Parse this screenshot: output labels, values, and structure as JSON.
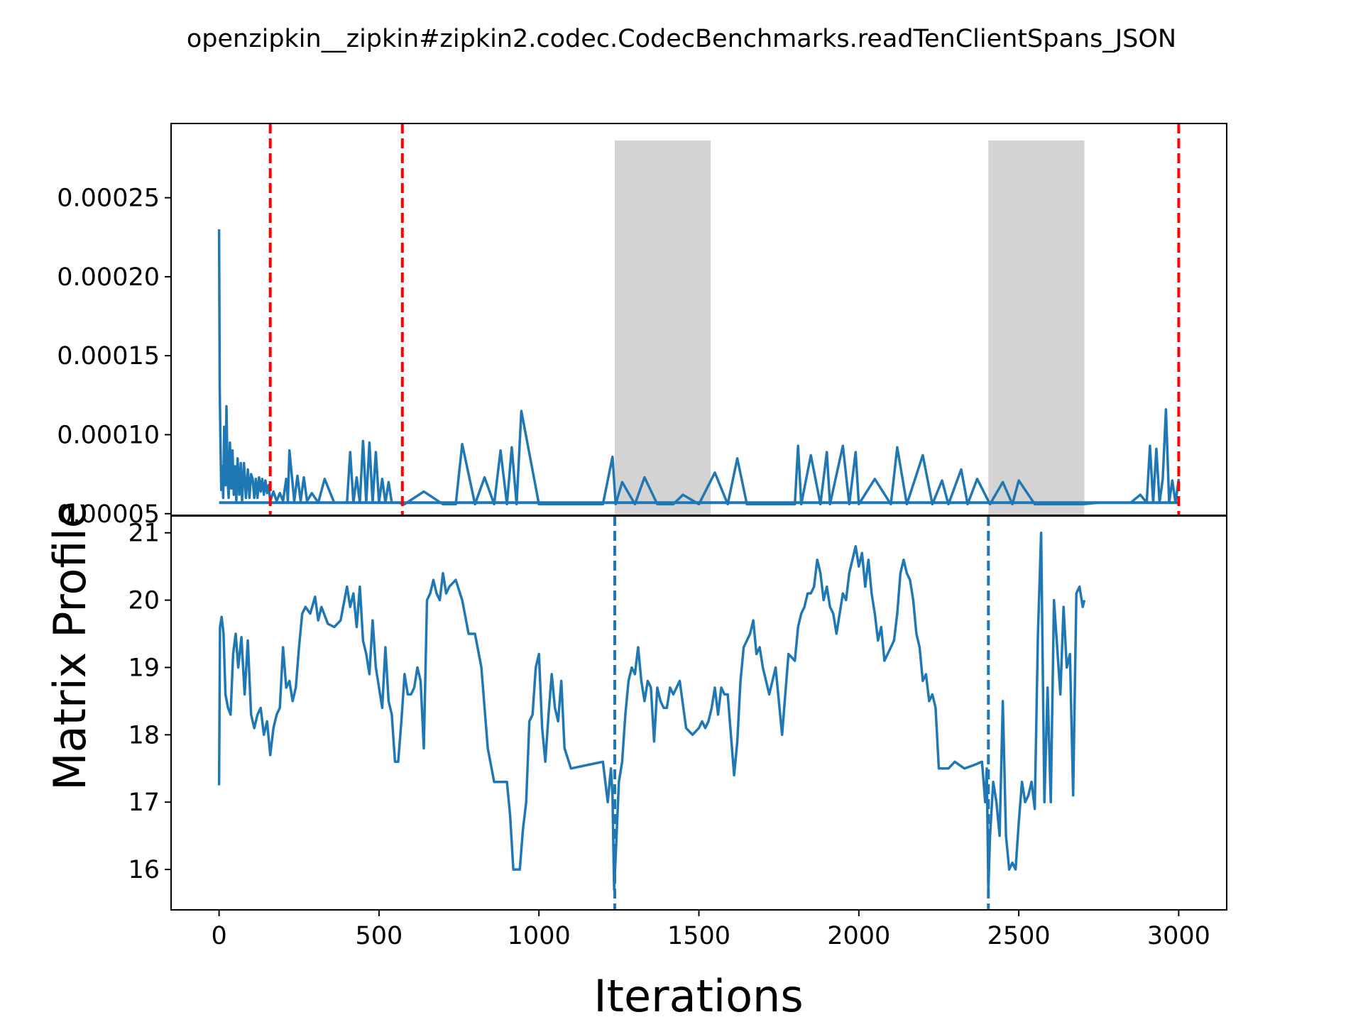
{
  "figure": {
    "title": "openzipkin__zipkin#zipkin2.codec.CodecBenchmarks.readTenClientSpans_JSON",
    "xlabel": "Iterations",
    "ylabel": "Matrix Profile"
  },
  "colors": {
    "series": "#1f77b4",
    "changepoint": "#ff0000",
    "shaded": "#d3d3d3",
    "axes": "#000000"
  },
  "chart_data": [
    {
      "type": "line",
      "panel": "top",
      "xlim": [
        -150,
        3150
      ],
      "ylim": [
        4.9e-05,
        0.000297
      ],
      "x_ticks": [
        0,
        500,
        1000,
        1500,
        2000,
        2500,
        3000
      ],
      "x_tick_labels": [
        "0",
        "500",
        "1000",
        "1500",
        "2000",
        "2500",
        "3000"
      ],
      "y_ticks": [
        5e-05,
        0.0001,
        0.00015,
        0.0002,
        0.00025
      ],
      "y_tick_labels": [
        "0.00005",
        "0.00010",
        "0.00015",
        "0.00020",
        "0.00025"
      ],
      "baseline": 5.7e-05,
      "series": [
        {
          "x": [
            0,
            2,
            4,
            7,
            10,
            13,
            16,
            20,
            23,
            27,
            30,
            34,
            38,
            42,
            46,
            50,
            54,
            58,
            63,
            68,
            72,
            78,
            84,
            90,
            95,
            100,
            105,
            110,
            115,
            120,
            125,
            130,
            135,
            140,
            145,
            150,
            155,
            160,
            170,
            180,
            190,
            200,
            210,
            215,
            220,
            235,
            245,
            255,
            265,
            275,
            290,
            310,
            330,
            360,
            400,
            410,
            420,
            430,
            440,
            450,
            460,
            470,
            480,
            490,
            500,
            510,
            520,
            530,
            540,
            560,
            580,
            640,
            700,
            740,
            760,
            800,
            830,
            860,
            880,
            900,
            915,
            930,
            945,
            1000,
            1100,
            1200,
            1230,
            1240,
            1260,
            1300,
            1330,
            1370,
            1420,
            1450,
            1500,
            1550,
            1590,
            1620,
            1650,
            1700,
            1800,
            1810,
            1820,
            1850,
            1880,
            1900,
            1910,
            1950,
            1970,
            1990,
            2000,
            2050,
            2100,
            2120,
            2150,
            2200,
            2230,
            2260,
            2280,
            2320,
            2340,
            2370,
            2410,
            2450,
            2480,
            2500,
            2550,
            2600,
            2650,
            2700,
            2750,
            2800,
            2850,
            2880,
            2900,
            2910,
            2920,
            2930,
            2940,
            2950,
            2960,
            2970,
            2980,
            2990,
            3000
          ],
          "values": [
            0.00023,
            0.00013,
            0.0001,
            6.5e-05,
            8e-05,
            6e-05,
            0.000105,
            6.8e-05,
            0.000118,
            7e-05,
            6e-05,
            9.5e-05,
            6.6e-05,
            9e-05,
            6.2e-05,
            8e-05,
            5.8e-05,
            8.5e-05,
            6.2e-05,
            8.2e-05,
            5.8e-05,
            8.2e-05,
            6e-05,
            7.8e-05,
            6e-05,
            7.5e-05,
            7.2e-05,
            6e-05,
            7.2e-05,
            6e-05,
            7.3e-05,
            6.4e-05,
            7.2e-05,
            6.2e-05,
            7.1e-05,
            6.3e-05,
            6.8e-05,
            5.8e-05,
            6.4e-05,
            5.8e-05,
            6.3e-05,
            5.8e-05,
            7.2e-05,
            5.8e-05,
            9e-05,
            5.8e-05,
            7.4e-05,
            5.8e-05,
            7.3e-05,
            5.8e-05,
            6.3e-05,
            5.7e-05,
            7.2e-05,
            5.7e-05,
            5.7e-05,
            8.9e-05,
            5.7e-05,
            7.3e-05,
            5.7e-05,
            9.6e-05,
            5.7e-05,
            9.5e-05,
            5.7e-05,
            8.9e-05,
            5.7e-05,
            7.2e-05,
            5.7e-05,
            7e-05,
            5.7e-05,
            5.7e-05,
            5.6e-05,
            6.4e-05,
            5.6e-05,
            5.6e-05,
            9.4e-05,
            5.6e-05,
            7.3e-05,
            5.6e-05,
            9e-05,
            5.6e-05,
            9.2e-05,
            5.6e-05,
            0.000115,
            5.6e-05,
            5.6e-05,
            5.6e-05,
            8.6e-05,
            5.6e-05,
            7e-05,
            5.6e-05,
            7.3e-05,
            5.6e-05,
            5.6e-05,
            6.2e-05,
            5.6e-05,
            7.6e-05,
            5.6e-05,
            8.5e-05,
            5.6e-05,
            5.6e-05,
            5.6e-05,
            9.3e-05,
            5.6e-05,
            8.7e-05,
            5.6e-05,
            8.9e-05,
            5.6e-05,
            9.3e-05,
            5.6e-05,
            8.9e-05,
            5.6e-05,
            7.2e-05,
            5.6e-05,
            9.2e-05,
            5.6e-05,
            8.7e-05,
            5.6e-05,
            7.1e-05,
            5.6e-05,
            7.8e-05,
            5.6e-05,
            7.2e-05,
            5.6e-05,
            7e-05,
            5.6e-05,
            7.1e-05,
            5.6e-05,
            5.6e-05,
            5.6e-05,
            5.6e-05,
            5.7e-05,
            5.7e-05,
            5.7e-05,
            6.2e-05,
            5.7e-05,
            9.3e-05,
            5.7e-05,
            9.1e-05,
            5.7e-05,
            7.2e-05,
            0.000116,
            5.7e-05,
            7.1e-05,
            5.7e-05,
            7.2e-05
          ]
        }
      ],
      "changepoints": [
        160,
        573,
        3000
      ],
      "shaded_regions": [
        [
          1237,
          1537
        ],
        [
          2405,
          2705
        ]
      ],
      "grid": false
    },
    {
      "type": "line",
      "panel": "bottom",
      "xlim": [
        -150,
        3150
      ],
      "ylim": [
        15.4,
        21.25
      ],
      "x_ticks": [
        0,
        500,
        1000,
        1500,
        2000,
        2500,
        3000
      ],
      "x_tick_labels": [
        "0",
        "500",
        "1000",
        "1500",
        "2000",
        "2500",
        "3000"
      ],
      "y_ticks": [
        16,
        17,
        18,
        19,
        20,
        21
      ],
      "y_tick_labels": [
        "16",
        "17",
        "18",
        "19",
        "20",
        "21"
      ],
      "series": [
        {
          "x": [
            0,
            3,
            8,
            14,
            20,
            28,
            36,
            44,
            52,
            60,
            70,
            80,
            90,
            100,
            110,
            120,
            130,
            140,
            150,
            160,
            170,
            180,
            190,
            200,
            210,
            220,
            230,
            240,
            250,
            260,
            270,
            285,
            300,
            310,
            320,
            340,
            360,
            380,
            400,
            410,
            420,
            430,
            440,
            450,
            460,
            470,
            480,
            490,
            500,
            510,
            520,
            530,
            540,
            550,
            560,
            570,
            580,
            590,
            600,
            610,
            620,
            630,
            640,
            650,
            660,
            670,
            680,
            690,
            700,
            710,
            720,
            740,
            760,
            780,
            800,
            820,
            840,
            860,
            880,
            900,
            910,
            920,
            930,
            940,
            950,
            960,
            970,
            980,
            990,
            1000,
            1010,
            1020,
            1030,
            1040,
            1050,
            1060,
            1070,
            1080,
            1100,
            1150,
            1200,
            1215,
            1225,
            1230,
            1235,
            1240,
            1250,
            1260,
            1270,
            1280,
            1290,
            1300,
            1310,
            1320,
            1330,
            1340,
            1350,
            1360,
            1370,
            1380,
            1390,
            1400,
            1410,
            1420,
            1440,
            1460,
            1480,
            1500,
            1510,
            1520,
            1530,
            1540,
            1550,
            1560,
            1570,
            1580,
            1590,
            1600,
            1610,
            1620,
            1630,
            1640,
            1650,
            1660,
            1670,
            1680,
            1690,
            1700,
            1720,
            1740,
            1760,
            1780,
            1800,
            1810,
            1820,
            1830,
            1840,
            1850,
            1860,
            1870,
            1880,
            1890,
            1900,
            1910,
            1920,
            1930,
            1940,
            1950,
            1960,
            1970,
            1980,
            1990,
            2000,
            2010,
            2020,
            2030,
            2040,
            2050,
            2060,
            2070,
            2080,
            2090,
            2100,
            2110,
            2120,
            2130,
            2140,
            2150,
            2160,
            2170,
            2180,
            2190,
            2200,
            2210,
            2220,
            2230,
            2240,
            2250,
            2260,
            2280,
            2300,
            2330,
            2360,
            2385,
            2395,
            2400,
            2405,
            2410,
            2420,
            2430,
            2440,
            2450,
            2460,
            2470,
            2480,
            2490,
            2500,
            2510,
            2520,
            2530,
            2540,
            2550,
            2560,
            2570,
            2580,
            2590,
            2600,
            2610,
            2620,
            2630,
            2640,
            2650,
            2660,
            2670,
            2680,
            2690,
            2700,
            2705
          ],
          "values": [
            17.25,
            19.6,
            19.75,
            19.5,
            18.6,
            18.4,
            18.3,
            19.2,
            19.5,
            19.0,
            19.45,
            18.6,
            19.4,
            18.3,
            18.1,
            18.3,
            18.4,
            18.0,
            18.2,
            17.7,
            18.1,
            18.3,
            18.4,
            19.3,
            18.7,
            18.8,
            18.5,
            18.7,
            19.3,
            19.8,
            19.9,
            19.8,
            20.05,
            19.7,
            19.9,
            19.65,
            19.6,
            19.7,
            20.2,
            19.9,
            20.1,
            19.6,
            20.2,
            19.4,
            19.2,
            18.9,
            19.7,
            19.0,
            18.7,
            18.4,
            19.3,
            18.5,
            18.3,
            17.6,
            17.6,
            18.2,
            18.9,
            18.6,
            18.6,
            18.7,
            19.0,
            18.8,
            17.8,
            20.0,
            20.1,
            20.3,
            20.1,
            20.0,
            20.4,
            20.1,
            20.2,
            20.3,
            20.0,
            19.5,
            19.5,
            19.0,
            17.8,
            17.3,
            17.3,
            17.3,
            16.8,
            16.0,
            16.0,
            16.0,
            16.6,
            17.0,
            18.2,
            18.3,
            19.0,
            19.2,
            18.1,
            17.6,
            18.3,
            18.9,
            18.4,
            18.2,
            18.8,
            17.8,
            17.5,
            17.55,
            17.6,
            17.0,
            17.5,
            17.1,
            15.7,
            16.2,
            17.3,
            17.6,
            18.3,
            18.8,
            19.0,
            18.9,
            19.3,
            18.8,
            18.5,
            18.8,
            18.7,
            17.9,
            18.7,
            18.5,
            18.4,
            18.4,
            18.7,
            18.6,
            18.8,
            18.1,
            18.0,
            18.1,
            18.2,
            18.1,
            18.2,
            18.4,
            18.7,
            18.3,
            18.7,
            18.6,
            18.6,
            18.0,
            17.4,
            17.9,
            18.8,
            19.3,
            19.4,
            19.5,
            19.7,
            19.2,
            19.3,
            19.0,
            18.6,
            19.0,
            18.0,
            19.2,
            19.1,
            19.6,
            19.8,
            19.9,
            20.1,
            20.1,
            20.2,
            20.6,
            20.4,
            20.0,
            20.2,
            19.9,
            19.8,
            19.5,
            19.8,
            20.1,
            20.0,
            20.4,
            20.6,
            20.8,
            20.5,
            20.7,
            20.2,
            20.6,
            20.1,
            19.8,
            19.4,
            19.6,
            19.1,
            19.2,
            19.3,
            19.4,
            19.8,
            20.4,
            20.6,
            20.4,
            20.3,
            20.0,
            19.5,
            19.3,
            18.8,
            18.9,
            18.5,
            18.6,
            18.4,
            17.5,
            17.5,
            17.5,
            17.6,
            17.5,
            17.55,
            17.6,
            17.0,
            17.5,
            15.7,
            16.5,
            17.3,
            17.0,
            16.5,
            18.5,
            16.5,
            16.0,
            16.1,
            16.0,
            16.7,
            17.3,
            17.0,
            17.1,
            17.3,
            16.9,
            19.5,
            21.0,
            17.0,
            18.7,
            17.0,
            20.0,
            19.3,
            18.6,
            19.9,
            19.0,
            19.2,
            17.1,
            20.1,
            20.2,
            19.9,
            20.0
          ]
        }
      ],
      "changepoints": [
        1237,
        2405
      ],
      "grid": false
    }
  ]
}
